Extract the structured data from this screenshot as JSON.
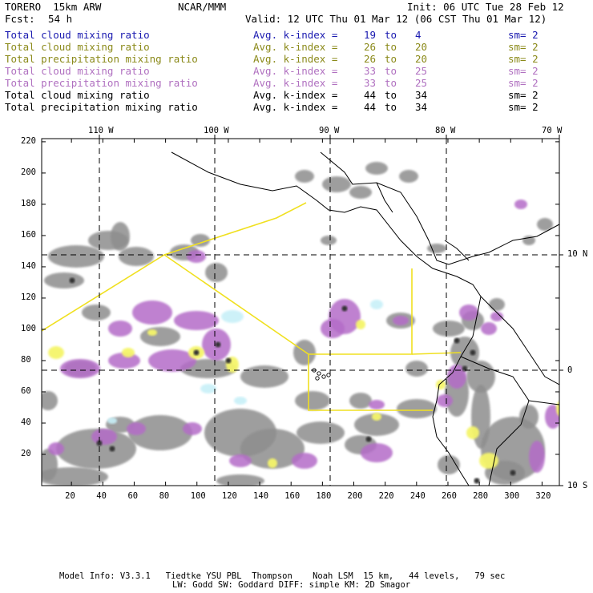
{
  "header": {
    "model": "TORERO  15km ARW",
    "center": "NCAR/MMM",
    "init": "Init: 06 UTC Tue 28 Feb 12",
    "fcst_label": "Fcst:",
    "fcst_value": "54 h",
    "valid": "Valid: 12 UTC Thu 01 Mar 12 (06 CST Thu 01 Mar 12)"
  },
  "legend": [
    {
      "field": "Total cloud mixing ratio",
      "kindex": "Avg. k-index =",
      "from": "19",
      "to_word": "to",
      "to": "4",
      "sm": "sm= 2",
      "color": "#1a1ab0"
    },
    {
      "field": "Total cloud mixing ratio",
      "kindex": "Avg. k-index =",
      "from": "26",
      "to_word": "to",
      "to": "20",
      "sm": "sm= 2",
      "color": "#8b8a1a"
    },
    {
      "field": "Total precipitation mixing ratio",
      "kindex": "Avg. k-index =",
      "from": "26",
      "to_word": "to",
      "to": "20",
      "sm": "sm= 2",
      "color": "#8b8a1a"
    },
    {
      "field": "Total cloud mixing ratio",
      "kindex": "Avg. k-index =",
      "from": "33",
      "to_word": "to",
      "to": "25",
      "sm": "sm= 2",
      "color": "#b070c0"
    },
    {
      "field": "Total precipitation mixing ratio",
      "kindex": "Avg. k-index =",
      "from": "33",
      "to_word": "to",
      "to": "25",
      "sm": "sm= 2",
      "color": "#b070c0"
    },
    {
      "field": "Total cloud mixing ratio",
      "kindex": "Avg. k-index =",
      "from": "44",
      "to_word": "to",
      "to": "34",
      "sm": "sm= 2",
      "color": "#000000"
    },
    {
      "field": "Total precipitation mixing ratio",
      "kindex": "Avg. k-index =",
      "from": "44",
      "to_word": "to",
      "to": "34",
      "sm": "sm= 2",
      "color": "#000000"
    }
  ],
  "map": {
    "lon_labels": [
      "110 W",
      "100 W",
      "90 W",
      "80 W",
      "70 W"
    ],
    "lat_labels": [
      "10 N",
      "0",
      "10 S"
    ],
    "y_ticks": [
      "220",
      "200",
      "180",
      "160",
      "140",
      "120",
      "100",
      "80",
      "60",
      "40",
      "20"
    ],
    "x_ticks": [
      "20",
      "40",
      "60",
      "80",
      "100",
      "120",
      "140",
      "160",
      "180",
      "200",
      "220",
      "240",
      "260",
      "280",
      "300",
      "320"
    ],
    "colors": {
      "gray": "#8e8e8e",
      "purple": "#b46cc8",
      "yellow": "#f5f56a",
      "cyan": "#c8f0f8",
      "boundary": "#f0e020"
    }
  },
  "footer": {
    "line1": "Model Info: V3.3.1   Tiedtke YSU PBL  Thompson    Noah LSM  15 km,   44 levels,   79 sec",
    "line2": "LW: Godd SW: Goddard DIFF: simple KM: 2D Smagor"
  }
}
